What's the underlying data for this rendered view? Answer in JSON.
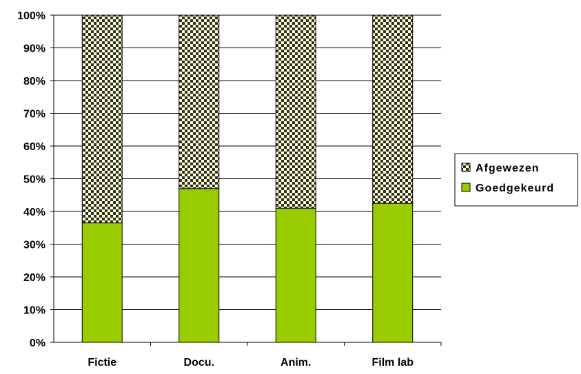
{
  "chart_data": {
    "type": "bar",
    "stacked": true,
    "percent": true,
    "categories": [
      "Fictie",
      "Docu.",
      "Anim.",
      "Film lab"
    ],
    "series": [
      {
        "name": "Goedgekeurd",
        "values": [
          36.5,
          47,
          41,
          42.5
        ],
        "color": "#99cc00",
        "pattern": "solid"
      },
      {
        "name": "Afgewezen",
        "values": [
          63.5,
          53,
          59,
          57.5
        ],
        "color": "#333300",
        "pattern": "checker"
      }
    ],
    "yticks": [
      "0%",
      "10%",
      "20%",
      "30%",
      "40%",
      "50%",
      "60%",
      "70%",
      "80%",
      "90%",
      "100%"
    ],
    "ylim": [
      0,
      100
    ],
    "grid": true,
    "legend": "right"
  }
}
